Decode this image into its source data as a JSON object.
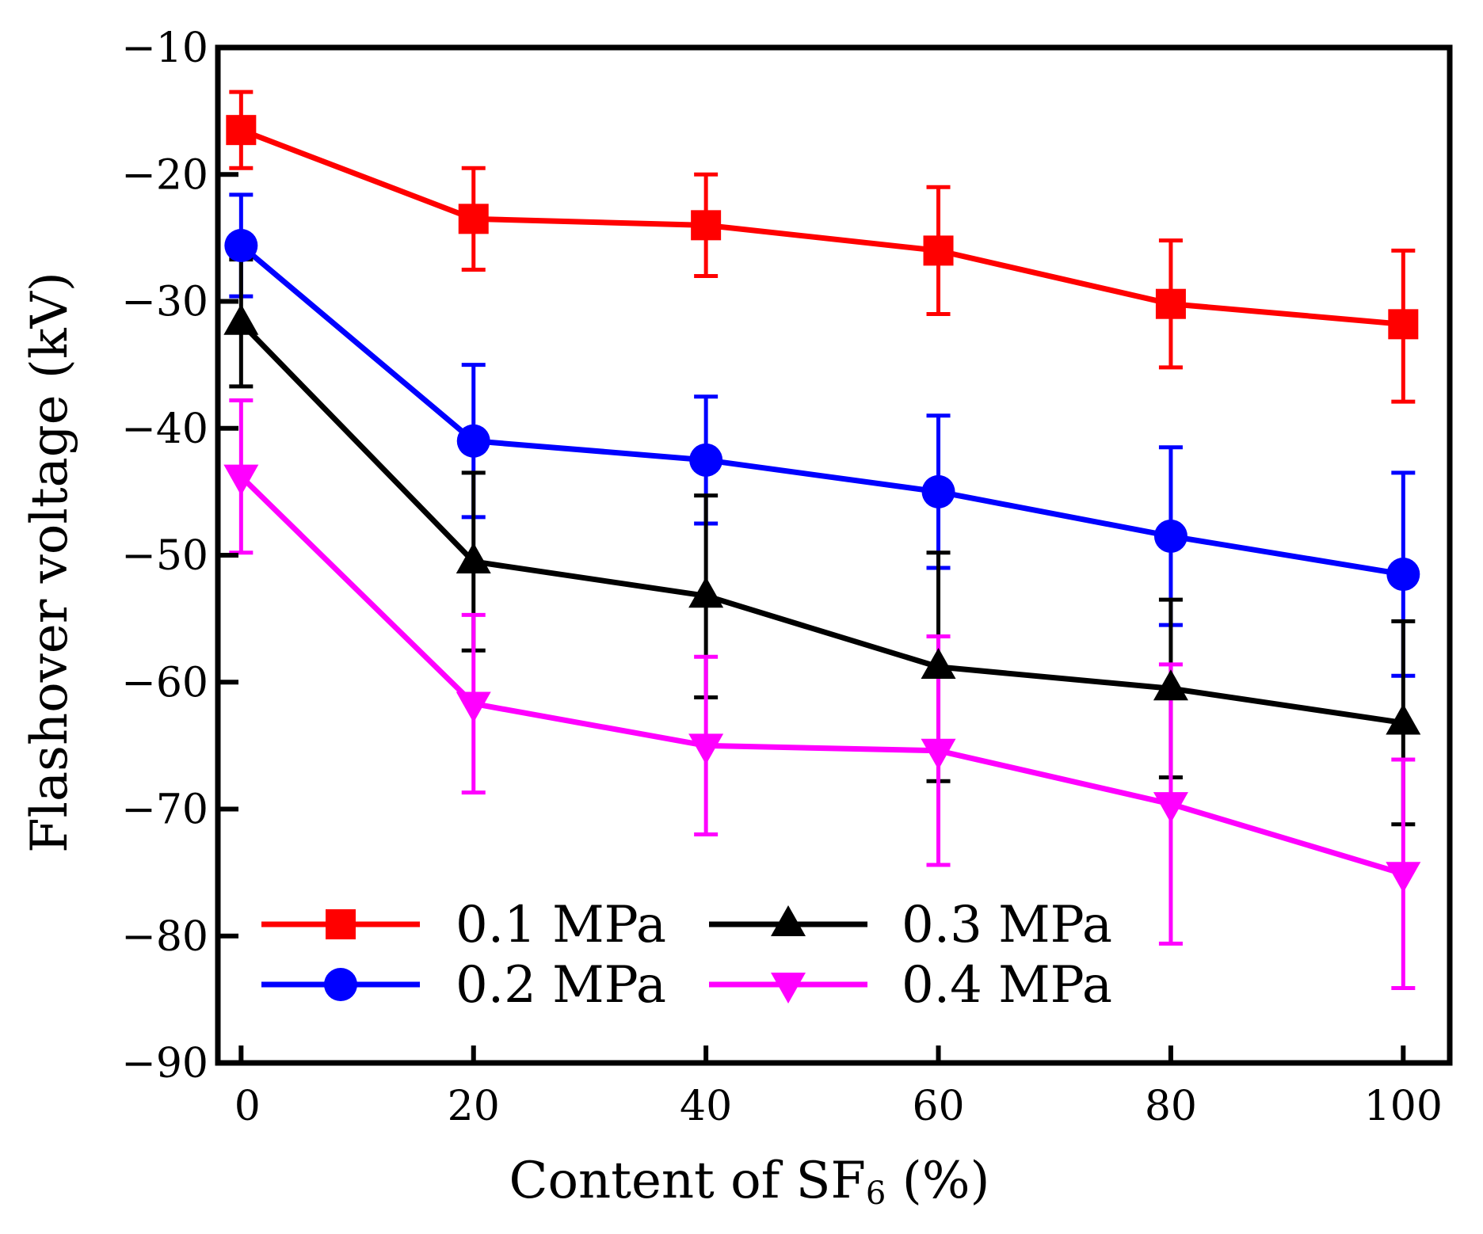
{
  "chart_data": {
    "type": "line",
    "title": "",
    "xlabel": "Content of SF",
    "xlabel_subscript": "6",
    "xlabel_suffix": " (%)",
    "ylabel": "Flashover voltage (kV)",
    "xlim": [
      -2,
      104
    ],
    "ylim": [
      -90,
      -10
    ],
    "xticks": [
      0,
      20,
      40,
      60,
      80,
      100
    ],
    "yticks": [
      -10,
      -20,
      -30,
      -40,
      -50,
      -60,
      -70,
      -80,
      -90
    ],
    "xtick_labels": [
      "0",
      "20",
      "40",
      "60",
      "80",
      "100"
    ],
    "ytick_labels": [
      "−10",
      "−20",
      "−30",
      "−40",
      "−50",
      "−60",
      "−70",
      "−80",
      "−90"
    ],
    "x": [
      0,
      20,
      40,
      60,
      80,
      100
    ],
    "legend_position": "bottom-left",
    "series": [
      {
        "name": "0.1 MPa",
        "color": "#ff0000",
        "marker": "square",
        "values": [
          -16.5,
          -23.5,
          -24.0,
          -26.0,
          -30.2,
          -31.8
        ],
        "err_upper": [
          -13.5,
          -19.5,
          -20.0,
          -21.0,
          -25.2,
          -26.0
        ],
        "err_lower": [
          -19.5,
          -27.5,
          -28.0,
          -31.0,
          -35.2,
          -37.9
        ]
      },
      {
        "name": "0.2 MPa",
        "color": "#0000ff",
        "marker": "circle",
        "values": [
          -25.6,
          -41.0,
          -42.5,
          -45.0,
          -48.5,
          -51.5
        ],
        "err_upper": [
          -21.6,
          -35.0,
          -37.5,
          -39.0,
          -41.5,
          -43.5
        ],
        "err_lower": [
          -29.6,
          -47.0,
          -47.5,
          -51.0,
          -55.5,
          -59.5
        ]
      },
      {
        "name": "0.3 MPa",
        "color": "#000000",
        "marker": "triangle-up",
        "values": [
          -31.7,
          -50.5,
          -53.2,
          -58.8,
          -60.5,
          -63.2
        ],
        "err_upper": [
          -26.7,
          -43.5,
          -45.3,
          -49.8,
          -53.5,
          -55.2
        ],
        "err_lower": [
          -36.7,
          -57.5,
          -61.2,
          -67.8,
          -67.5,
          -71.2
        ]
      },
      {
        "name": "0.4 MPa",
        "color": "#ff00ff",
        "marker": "triangle-down",
        "values": [
          -43.8,
          -61.7,
          -65.0,
          -65.4,
          -69.6,
          -75.1
        ],
        "err_upper": [
          -37.8,
          -54.7,
          -58.0,
          -56.4,
          -58.6,
          -66.1
        ],
        "err_lower": [
          -49.8,
          -68.7,
          -72.0,
          -74.4,
          -80.6,
          -84.1
        ]
      }
    ]
  }
}
